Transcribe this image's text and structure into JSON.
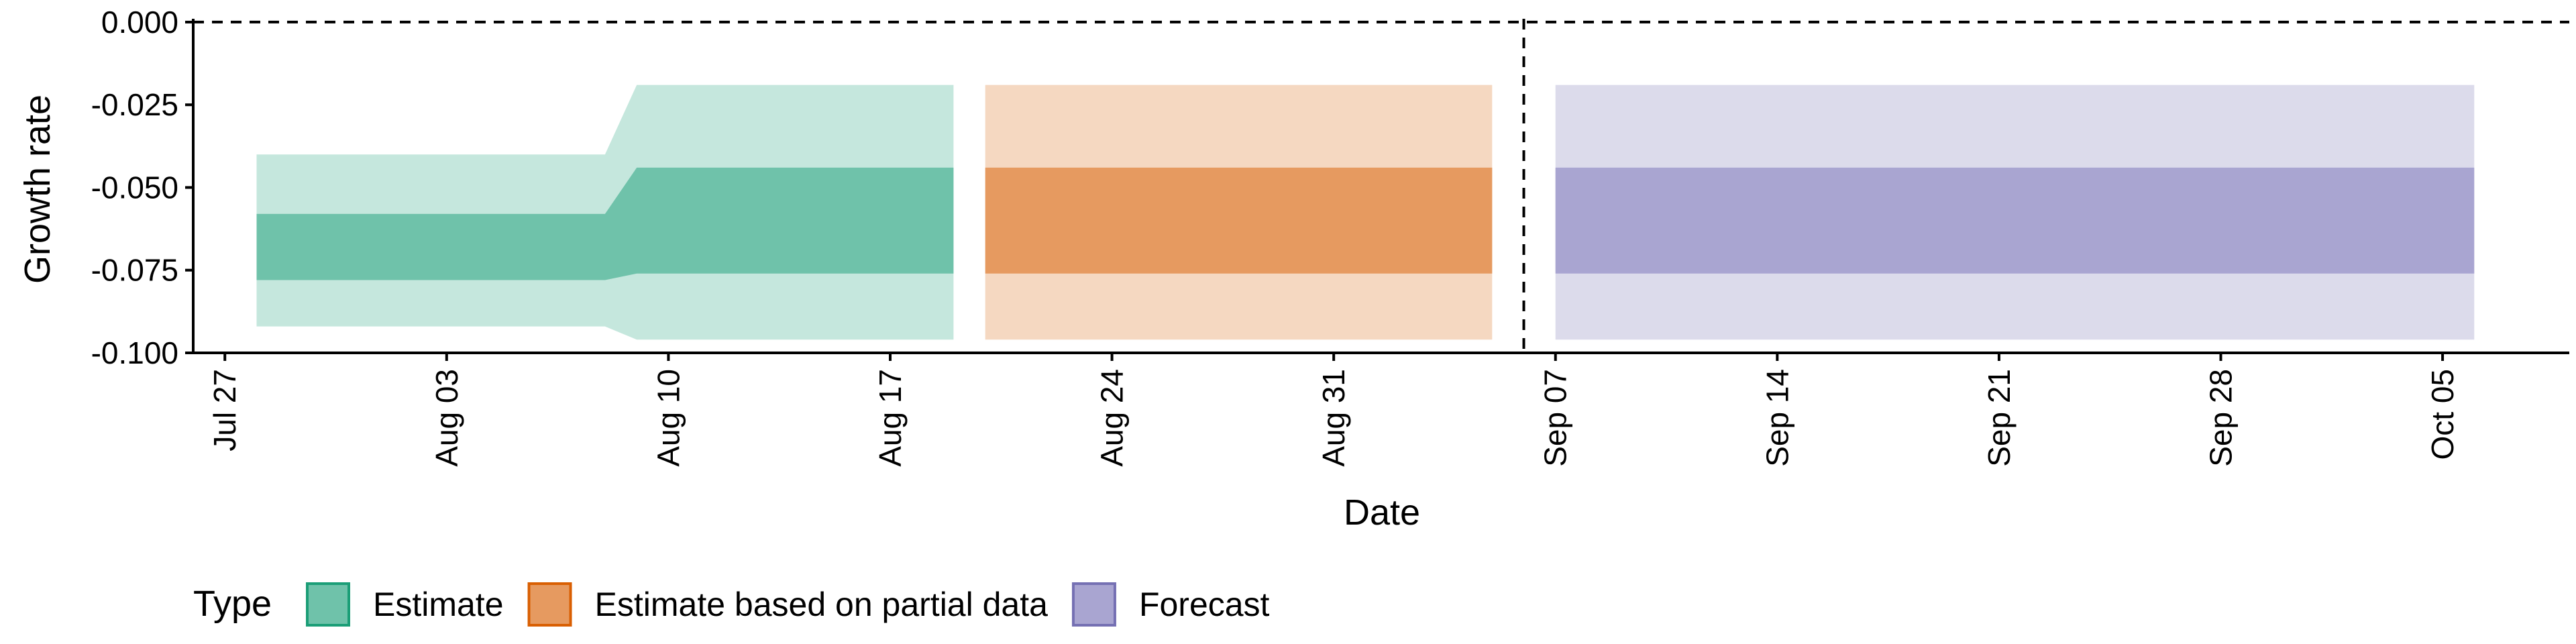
{
  "chart_data": {
    "type": "area",
    "title": "",
    "xlabel": "Date",
    "ylabel": "Growth rate",
    "x_ticks": [
      "Jul 27",
      "Aug 03",
      "Aug 10",
      "Aug 17",
      "Aug 24",
      "Aug 31",
      "Sep 07",
      "Sep 14",
      "Sep 21",
      "Sep 28",
      "Oct 05"
    ],
    "y_ticks": [
      "0.000",
      "-0.025",
      "-0.050",
      "-0.075",
      "-0.100"
    ],
    "ylim": [
      -0.1,
      0.001
    ],
    "xlim": [
      "2021-07-26",
      "2021-10-09"
    ],
    "grid": false,
    "reference_lines": [
      {
        "orientation": "horizontal",
        "y": 0.0,
        "style": "dashed"
      },
      {
        "orientation": "vertical",
        "x": "2021-09-06",
        "style": "dashed"
      }
    ],
    "legend": {
      "title": "Type",
      "position": "bottom-left",
      "items": [
        {
          "label": "Estimate",
          "fill": "#6fc2aa",
          "border": "#1b9e77"
        },
        {
          "label": "Estimate based on partial data",
          "fill": "#e69a60",
          "border": "#d95f02"
        },
        {
          "label": "Forecast",
          "fill": "#a9a5d1",
          "border": "#7570b3"
        }
      ]
    },
    "series": [
      {
        "name": "Estimate",
        "color_outer": "#c5e7dd",
        "color_inner": "#6fc2aa",
        "points": [
          {
            "date": "2021-07-28",
            "lower90": -0.092,
            "lower50": -0.078,
            "upper50": -0.058,
            "upper90": -0.04
          },
          {
            "date": "2021-08-08",
            "lower90": -0.092,
            "lower50": -0.078,
            "upper50": -0.058,
            "upper90": -0.04
          },
          {
            "date": "2021-08-09",
            "lower90": -0.096,
            "lower50": -0.076,
            "upper50": -0.044,
            "upper90": -0.019
          },
          {
            "date": "2021-08-19",
            "lower90": -0.096,
            "lower50": -0.076,
            "upper50": -0.044,
            "upper90": -0.019
          }
        ]
      },
      {
        "name": "Estimate based on partial data",
        "color_outer": "#f5d8c1",
        "color_inner": "#e69a60",
        "points": [
          {
            "date": "2021-08-20",
            "lower90": -0.096,
            "lower50": -0.076,
            "upper50": -0.044,
            "upper90": -0.019
          },
          {
            "date": "2021-09-05",
            "lower90": -0.096,
            "lower50": -0.076,
            "upper50": -0.044,
            "upper90": -0.019
          }
        ]
      },
      {
        "name": "Forecast",
        "color_outer": "#dcdbeb",
        "color_inner": "#a9a5d1",
        "points": [
          {
            "date": "2021-09-07",
            "lower90": -0.096,
            "lower50": -0.076,
            "upper50": -0.044,
            "upper90": -0.019
          },
          {
            "date": "2021-10-06",
            "lower90": -0.096,
            "lower50": -0.076,
            "upper50": -0.044,
            "upper90": -0.019
          }
        ]
      }
    ]
  }
}
